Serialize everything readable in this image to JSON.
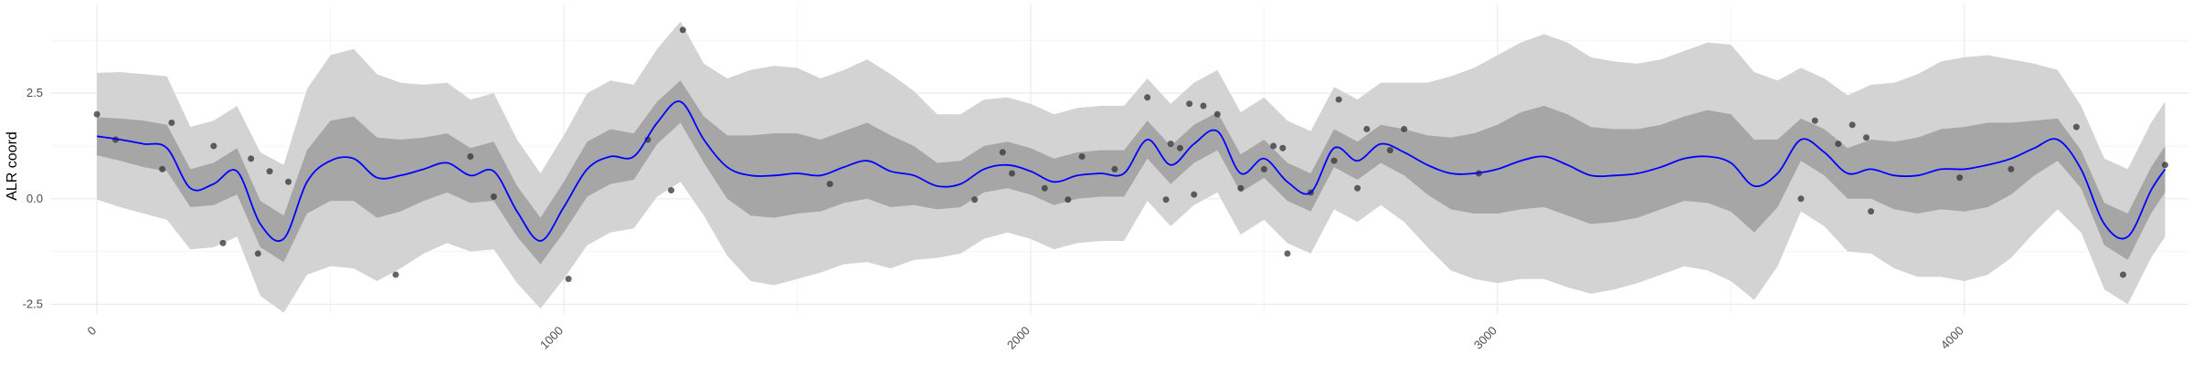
{
  "chart_data": {
    "type": "line",
    "title": "",
    "xlabel": "",
    "ylabel": "ALR coord",
    "xlim": [
      -100,
      4480
    ],
    "ylim": [
      -2.75,
      4.6
    ],
    "x_ticks": [
      0,
      1000,
      2000,
      3000,
      4000
    ],
    "x_tick_labels": [
      "0",
      "1000",
      "2000",
      "3000",
      "4000"
    ],
    "y_ticks": [
      -2.5,
      0.0,
      2.5
    ],
    "y_tick_labels": [
      "-2.5",
      "0.0",
      "2.5"
    ],
    "grid": true,
    "colors": {
      "mean_line": "#0000ff",
      "inner_band": "#a6a6a6",
      "outer_band": "#d3d3d3",
      "points": "#333333",
      "grid_major": "#ebebeb",
      "grid_minor": "#f5f5f5"
    },
    "mean": {
      "x": [
        0,
        50,
        100,
        150,
        200,
        250,
        300,
        350,
        400,
        450,
        500,
        550,
        600,
        650,
        700,
        750,
        800,
        850,
        900,
        950,
        1000,
        1050,
        1100,
        1150,
        1200,
        1250,
        1300,
        1350,
        1400,
        1450,
        1500,
        1550,
        1600,
        1650,
        1700,
        1750,
        1800,
        1850,
        1900,
        1950,
        2000,
        2050,
        2100,
        2150,
        2200,
        2250,
        2300,
        2350,
        2400,
        2450,
        2500,
        2550,
        2600,
        2650,
        2700,
        2750,
        2800,
        2850,
        2900,
        2950,
        3000,
        3050,
        3100,
        3150,
        3200,
        3250,
        3300,
        3350,
        3400,
        3450,
        3500,
        3550,
        3600,
        3650,
        3700,
        3750,
        3800,
        3850,
        3900,
        3950,
        4000,
        4050,
        4100,
        4150,
        4200,
        4250,
        4300,
        4350,
        4400,
        4430
      ],
      "y": [
        1.48,
        1.4,
        1.3,
        1.2,
        0.25,
        0.35,
        0.65,
        -0.6,
        -0.95,
        0.4,
        0.9,
        0.95,
        0.5,
        0.55,
        0.7,
        0.85,
        0.55,
        0.65,
        -0.3,
        -1.0,
        -0.2,
        0.7,
        1.0,
        1.0,
        1.8,
        2.3,
        1.4,
        0.75,
        0.55,
        0.55,
        0.6,
        0.55,
        0.75,
        0.9,
        0.65,
        0.55,
        0.3,
        0.35,
        0.7,
        0.8,
        0.65,
        0.4,
        0.55,
        0.6,
        0.6,
        1.4,
        0.8,
        1.3,
        1.6,
        0.6,
        0.95,
        0.4,
        0.15,
        1.2,
        0.9,
        1.3,
        1.1,
        0.8,
        0.6,
        0.6,
        0.7,
        0.9,
        1.0,
        0.8,
        0.55,
        0.55,
        0.6,
        0.75,
        0.95,
        1.0,
        0.85,
        0.3,
        0.6,
        1.4,
        1.1,
        0.6,
        0.7,
        0.55,
        0.55,
        0.7,
        0.7,
        0.8,
        0.95,
        1.2,
        1.4,
        0.7,
        -0.6,
        -0.9,
        0.2,
        0.7
      ]
    },
    "inner_band_halfwidth": [
      0.45,
      0.5,
      0.55,
      0.55,
      0.45,
      0.5,
      0.55,
      0.55,
      0.55,
      0.75,
      0.95,
      1.0,
      0.95,
      0.85,
      0.75,
      0.7,
      0.65,
      0.7,
      0.6,
      0.55,
      0.6,
      0.65,
      0.65,
      0.55,
      0.5,
      0.5,
      0.55,
      0.75,
      0.95,
      1.0,
      0.95,
      0.85,
      0.85,
      0.9,
      0.85,
      0.7,
      0.55,
      0.55,
      0.55,
      0.55,
      0.55,
      0.55,
      0.55,
      0.55,
      0.55,
      0.45,
      0.45,
      0.45,
      0.45,
      0.45,
      0.45,
      0.45,
      0.45,
      0.45,
      0.45,
      0.45,
      0.55,
      0.7,
      0.85,
      0.95,
      1.05,
      1.15,
      1.2,
      1.2,
      1.15,
      1.1,
      1.05,
      1.0,
      1.0,
      1.1,
      1.15,
      1.1,
      0.8,
      0.5,
      0.55,
      0.6,
      0.7,
      0.8,
      0.9,
      0.95,
      1.0,
      1.0,
      0.85,
      0.65,
      0.5,
      0.45,
      0.5,
      0.55,
      0.55,
      0.55
    ],
    "outer_band_halfwidth": [
      1.5,
      1.6,
      1.65,
      1.7,
      1.45,
      1.5,
      1.55,
      1.7,
      1.75,
      2.2,
      2.5,
      2.6,
      2.45,
      2.2,
      2.0,
      1.9,
      1.8,
      1.85,
      1.7,
      1.6,
      1.7,
      1.8,
      1.8,
      1.7,
      1.75,
      1.9,
      1.8,
      2.1,
      2.5,
      2.6,
      2.5,
      2.3,
      2.3,
      2.4,
      2.3,
      2.0,
      1.7,
      1.65,
      1.65,
      1.6,
      1.6,
      1.6,
      1.6,
      1.6,
      1.6,
      1.45,
      1.45,
      1.45,
      1.45,
      1.45,
      1.45,
      1.45,
      1.45,
      1.45,
      1.45,
      1.45,
      1.65,
      1.95,
      2.3,
      2.5,
      2.7,
      2.8,
      2.9,
      2.9,
      2.8,
      2.7,
      2.6,
      2.55,
      2.55,
      2.7,
      2.8,
      2.7,
      2.2,
      1.7,
      1.75,
      1.85,
      2.0,
      2.2,
      2.4,
      2.55,
      2.65,
      2.6,
      2.35,
      2.0,
      1.65,
      1.5,
      1.55,
      1.6,
      1.6,
      1.6
    ],
    "points": {
      "x": [
        0,
        40,
        140,
        160,
        250,
        270,
        330,
        345,
        370,
        410,
        640,
        800,
        850,
        1010,
        1180,
        1230,
        1255,
        1570,
        1880,
        1940,
        1960,
        2030,
        2080,
        2110,
        2180,
        2250,
        2290,
        2300,
        2320,
        2340,
        2350,
        2370,
        2400,
        2450,
        2500,
        2520,
        2540,
        2550,
        2600,
        2650,
        2660,
        2700,
        2720,
        2770,
        2800,
        2960,
        3650,
        3680,
        3730,
        3760,
        3790,
        3800,
        3990,
        4100,
        4240,
        4340,
        4430
      ],
      "y": [
        2.0,
        1.4,
        0.7,
        1.8,
        1.25,
        -1.05,
        0.95,
        -1.3,
        0.65,
        0.4,
        -1.8,
        1.0,
        0.05,
        -1.9,
        1.4,
        0.2,
        4.0,
        0.35,
        -0.02,
        1.1,
        0.6,
        0.25,
        -0.02,
        1.0,
        0.7,
        2.4,
        -0.02,
        1.3,
        1.2,
        2.25,
        0.1,
        2.2,
        2.0,
        0.25,
        0.7,
        1.25,
        1.2,
        -1.3,
        0.15,
        0.9,
        2.35,
        0.25,
        1.65,
        1.15,
        1.65,
        0.6,
        0.0,
        1.85,
        1.3,
        1.75,
        1.45,
        -0.3,
        0.5,
        0.7,
        1.7,
        -1.8,
        0.8
      ]
    }
  }
}
